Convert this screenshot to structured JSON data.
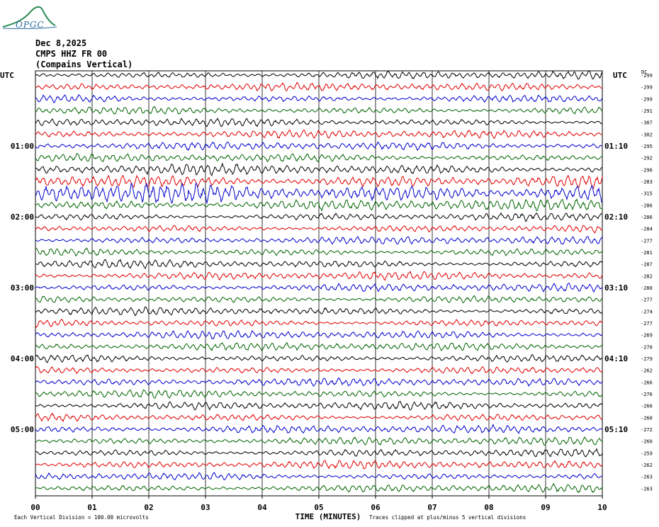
{
  "header": {
    "date": "Dec 8,2025",
    "station": "CMPS HHZ FR 00",
    "location": "(Compains Vertical)"
  },
  "logo": {
    "text": "OPGC",
    "colors": [
      "#2e8b57",
      "#2a6a9a"
    ]
  },
  "chart_data": {
    "type": "line",
    "title": "",
    "xlabel": "TIME (MINUTES)",
    "xlim": [
      0,
      10
    ],
    "x_ticks": [
      "00",
      "01",
      "02",
      "03",
      "04",
      "05",
      "06",
      "07",
      "08",
      "09",
      "10"
    ],
    "left_axis_label": "UTC",
    "right_axis_label": "UTC",
    "dc_label": "DC",
    "left_time_labels": [
      {
        "row": 6,
        "label": "01:00"
      },
      {
        "row": 12,
        "label": "02:00"
      },
      {
        "row": 18,
        "label": "03:00"
      },
      {
        "row": 24,
        "label": "04:00"
      },
      {
        "row": 30,
        "label": "05:00"
      }
    ],
    "right_time_labels": [
      {
        "row": 6,
        "label": "01:10"
      },
      {
        "row": 12,
        "label": "02:10"
      },
      {
        "row": 18,
        "label": "03:10"
      },
      {
        "row": 24,
        "label": "04:10"
      },
      {
        "row": 30,
        "label": "05:10"
      }
    ],
    "trace_colors": [
      "#000000",
      "#e00000",
      "#0000cc",
      "#006400"
    ],
    "dc_offsets": [
      -299,
      -299,
      -299,
      -291,
      -307,
      -302,
      -295,
      -292,
      -296,
      -283,
      -315,
      -286,
      -286,
      -284,
      -277,
      -281,
      -287,
      -282,
      -280,
      -277,
      -274,
      -277,
      -269,
      -270,
      -279,
      -262,
      -266,
      -276,
      -266,
      -260,
      -272,
      -260,
      -259,
      -262,
      -263,
      -263
    ],
    "emphasis": [
      1,
      1,
      1,
      1,
      1,
      1,
      1,
      1,
      1.3,
      1.8,
      2.6,
      1.4,
      1,
      1,
      1,
      1,
      1,
      1,
      1,
      1,
      1,
      1,
      1,
      1,
      1,
      1,
      1,
      1,
      1,
      1,
      1,
      1,
      1,
      1,
      1,
      1
    ],
    "footer_left": "Each Vertical Division =  100.00 microvolts",
    "footer_right": "Traces clipped at plus/minus 5 vertical divisions"
  }
}
